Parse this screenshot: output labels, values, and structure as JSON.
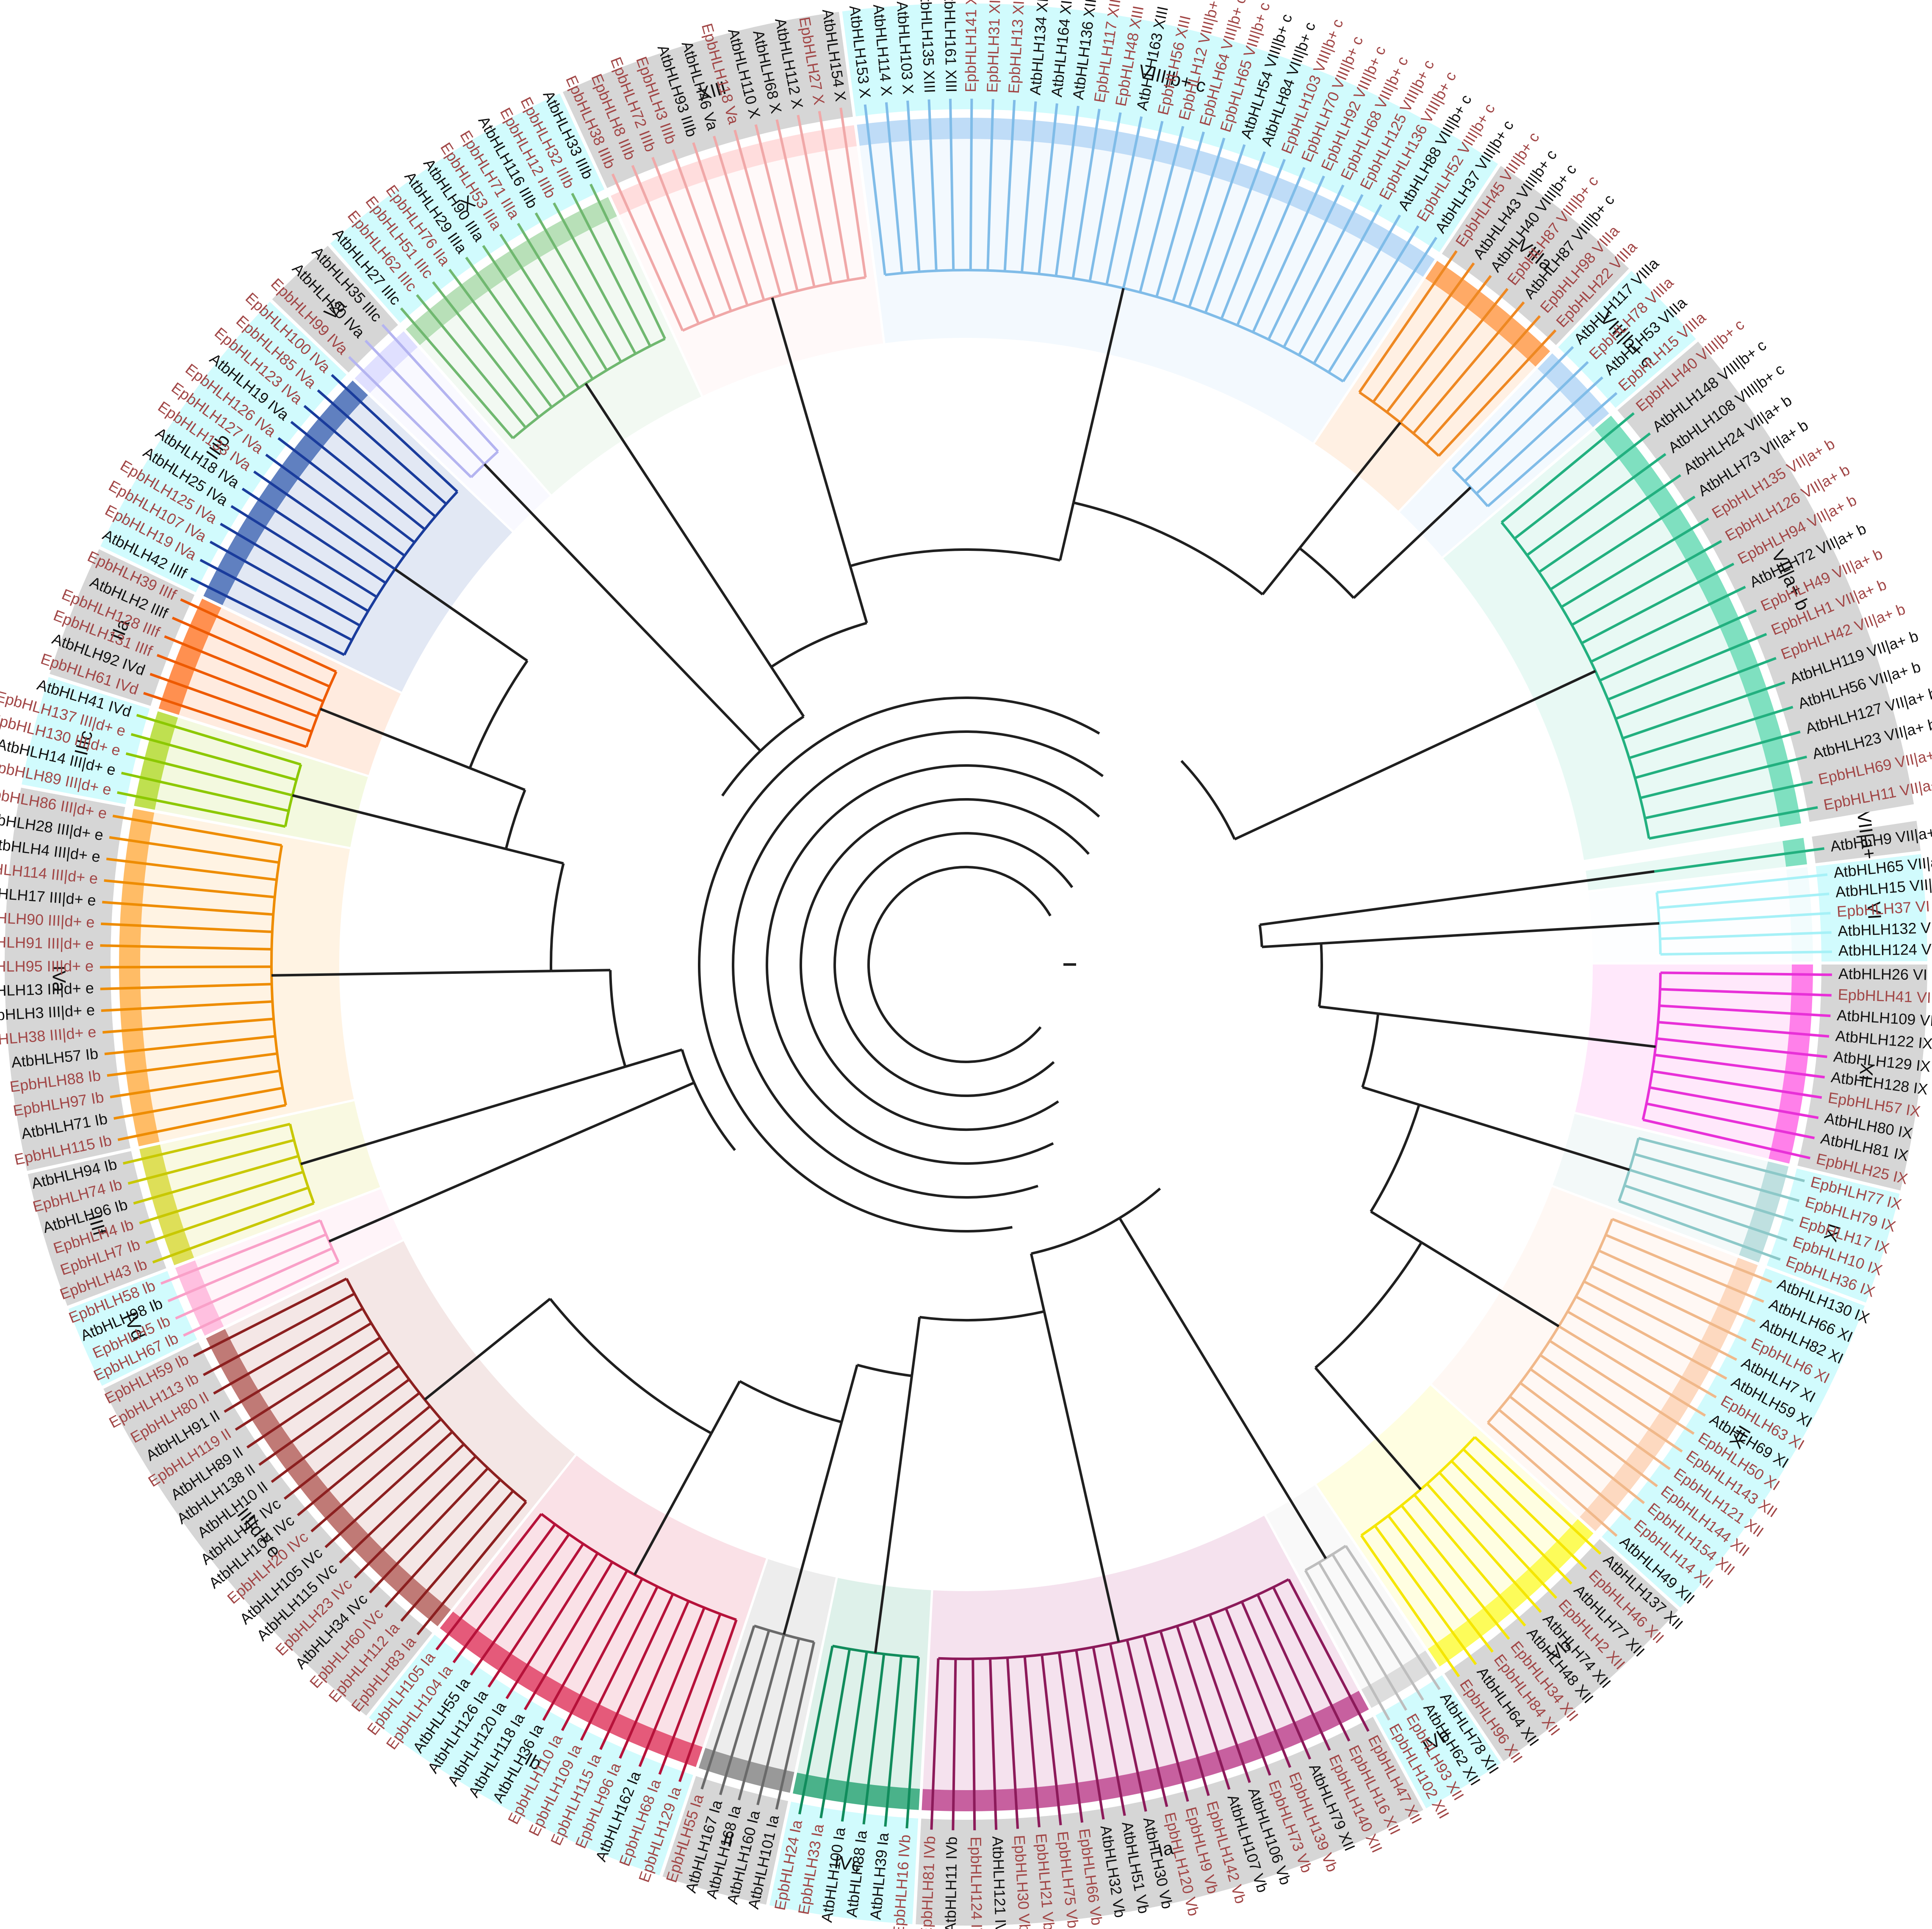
{
  "colors": {
    "at_label": "#111111",
    "ep_label": "#a14646",
    "outer_grey": "#d6d6d6",
    "outer_cyan": "#d1fbfd",
    "center_branch": "#1f1f1f"
  },
  "groups": [
    {
      "name": "VII|a+ b",
      "start": -8.6,
      "end": -6.8,
      "color": "#7fe0c0",
      "branch": "#22b07f",
      "ring": "grey"
    },
    {
      "name": "VI",
      "start": -6.6,
      "end": -0.2,
      "color": "#f2fcfd",
      "branch": "#a6f1f7",
      "ring": "cyan"
    },
    {
      "name": "IX",
      "start": 0.0,
      "end": 13.6,
      "color": "#ff80ea",
      "branch": "#e830d8",
      "ring": "grey"
    },
    {
      "name": "XI",
      "start": 13.8,
      "end": 20.6,
      "color": "#bfe0e0",
      "branch": "#8cc8c8",
      "ring": "cyan"
    },
    {
      "name": "XII",
      "start": 20.8,
      "end": 42.0,
      "color": "#fdd9c0",
      "branch": "#f0b88a",
      "ring": "cyan"
    },
    {
      "name": "Vb",
      "start": 42.2,
      "end": 56.0,
      "color": "#fdfc5a",
      "branch": "#f5e600",
      "ring": "grey"
    },
    {
      "name": "IVb",
      "start": 56.2,
      "end": 61.4,
      "color": "#dddddd",
      "branch": "#bdbdbd",
      "ring": "cyan"
    },
    {
      "name": "Ia",
      "start": 61.6,
      "end": 93.0,
      "color": "#c7609f",
      "branch": "#8c1a5a",
      "ring": "grey"
    },
    {
      "name": "IVc",
      "start": 93.2,
      "end": 101.8,
      "color": "#4ab28a",
      "branch": "#118c5c",
      "ring": "cyan"
    },
    {
      "name": "II",
      "start": 102.0,
      "end": 108.4,
      "color": "#999999",
      "branch": "#6a6a6a",
      "ring": "grey"
    },
    {
      "name": "Ib",
      "start": 108.6,
      "end": 128.4,
      "color": "#e55a7a",
      "branch": "#b6123a",
      "ring": "cyan"
    },
    {
      "name": "III|d+ e",
      "start": 128.6,
      "end": 153.8,
      "color": "#c07a76",
      "branch": "#8c2020",
      "ring": "grey"
    },
    {
      "name": "IVd",
      "start": 154.0,
      "end": 159.0,
      "color": "#ffc0e0",
      "branch": "#f9a0c8",
      "ring": "cyan"
    },
    {
      "name": "IIIf",
      "start": 159.2,
      "end": 167.4,
      "color": "#dedf58",
      "branch": "#c8c800",
      "ring": "grey"
    },
    {
      "name": "IVa",
      "start": 167.6,
      "end": 190.6,
      "color": "#ffbc66",
      "branch": "#ee8c00",
      "ring": "grey"
    },
    {
      "name": "IIIc",
      "start": 190.8,
      "end": 197.4,
      "color": "#bfe050",
      "branch": "#8cc800",
      "ring": "cyan"
    },
    {
      "name": "IIa",
      "start": 197.6,
      "end": 205.6,
      "color": "#ff9050",
      "branch": "#ee5a00",
      "ring": "grey"
    },
    {
      "name": "IIIb",
      "start": 205.8,
      "end": 223.6,
      "color": "#6080c0",
      "branch": "#1a3c9c",
      "ring": "cyan"
    },
    {
      "name": "Va",
      "start": 223.8,
      "end": 228.4,
      "color": "#e0e0ff",
      "branch": "#b4b4f0",
      "ring": "grey"
    },
    {
      "name": "X",
      "start": 228.6,
      "end": 245.0,
      "color": "#b8e0b8",
      "branch": "#70b870",
      "ring": "cyan"
    },
    {
      "name": "XIII",
      "start": 245.2,
      "end": 262.4,
      "color": "#ffdddd",
      "branch": "#f0a8a8",
      "ring": "grey"
    },
    {
      "name": "VIII|b+ c",
      "start": 262.6,
      "end": 303.6,
      "color": "#bfdcf7",
      "branch": "#80bce8",
      "ring": "cyan"
    },
    {
      "name": "VIIIa",
      "start": 303.8,
      "end": 313.6,
      "color": "#ffaa66",
      "branch": "#ee8822",
      "ring": "grey"
    },
    {
      "name": "VIII|b+ c",
      "start": 313.8,
      "end": 319.4,
      "color": "#bfdcf7",
      "branch": "#80bce8",
      "ring": "cyan"
    },
    {
      "name": "VII|a+ b",
      "start": 319.6,
      "end": 350.4,
      "color": "#7fe0c0",
      "branch": "#22b07f",
      "ring": "grey"
    }
  ],
  "leaves": [
    {
      "text": "AtbHLH9 VII|a+ b",
      "sp": "at"
    },
    {
      "text": "AtbHLH65 VII|a+ b",
      "sp": "at"
    },
    {
      "text": "AtbHLH15 VII|a+ b",
      "sp": "at"
    },
    {
      "text": "EpbHLH37 VI",
      "sp": "ep"
    },
    {
      "text": "AtbHLH132 VI",
      "sp": "at"
    },
    {
      "text": "AtbHLH124 VI",
      "sp": "at"
    },
    {
      "text": "AtbHLH26 VI",
      "sp": "at"
    },
    {
      "text": "EpbHLH41 VI",
      "sp": "ep"
    },
    {
      "text": "AtbHLH109 VI",
      "sp": "at"
    },
    {
      "text": "AtbHLH122 IX",
      "sp": "at"
    },
    {
      "text": "AtbHLH129 IX",
      "sp": "at"
    },
    {
      "text": "AtbHLH128 IX",
      "sp": "at"
    },
    {
      "text": "EpbHLH57 IX",
      "sp": "ep"
    },
    {
      "text": "AtbHLH80 IX",
      "sp": "at"
    },
    {
      "text": "AtbHLH81 IX",
      "sp": "at"
    },
    {
      "text": "EpbHLH25 IX",
      "sp": "ep"
    },
    {
      "text": "EpbHLH77 IX",
      "sp": "ep"
    },
    {
      "text": "EpbHLH79 IX",
      "sp": "ep"
    },
    {
      "text": "EpbHLH17 IX",
      "sp": "ep"
    },
    {
      "text": "EpbHLH10 IX",
      "sp": "ep"
    },
    {
      "text": "EpbHLH36 IX",
      "sp": "ep"
    },
    {
      "text": "AtbHLH130 IX",
      "sp": "at"
    },
    {
      "text": "AtbHLH66 XI",
      "sp": "at"
    },
    {
      "text": "AtbHLH82 XI",
      "sp": "at"
    },
    {
      "text": "EpbHLH6 XI",
      "sp": "ep"
    },
    {
      "text": "AtbHLH7 XI",
      "sp": "at"
    },
    {
      "text": "AtbHLH59 XI",
      "sp": "at"
    },
    {
      "text": "EpbHLH63 XI",
      "sp": "ep"
    },
    {
      "text": "AtbHLH69 XI",
      "sp": "at"
    },
    {
      "text": "EpbHLH50 XI",
      "sp": "ep"
    },
    {
      "text": "EpbHLH143 XII",
      "sp": "ep"
    },
    {
      "text": "EpbHLH121 XII",
      "sp": "ep"
    },
    {
      "text": "EpbHLH144 XII",
      "sp": "ep"
    },
    {
      "text": "EpbHLH154 XII",
      "sp": "ep"
    },
    {
      "text": "EpbHLH14 XII",
      "sp": "ep"
    },
    {
      "text": "AtbHLH49 XII",
      "sp": "at"
    },
    {
      "text": "AtbHLH137 XII",
      "sp": "at"
    },
    {
      "text": "EpbHLH46 XII",
      "sp": "ep"
    },
    {
      "text": "AtbHLH77 XII",
      "sp": "at"
    },
    {
      "text": "EpbHLH2 XII",
      "sp": "ep"
    },
    {
      "text": "AtbHLH74 XII",
      "sp": "at"
    },
    {
      "text": "AtbHLH48 XII",
      "sp": "at"
    },
    {
      "text": "EpbHLH34 XII",
      "sp": "ep"
    },
    {
      "text": "EpbHLH84 XII",
      "sp": "ep"
    },
    {
      "text": "AtbHLH64 XII",
      "sp": "at"
    },
    {
      "text": "EpbHLH96 XII",
      "sp": "ep"
    },
    {
      "text": "AtbHLH78 XII",
      "sp": "at"
    },
    {
      "text": "AtbHLH62 XII",
      "sp": "at"
    },
    {
      "text": "EpbHLH93 XII",
      "sp": "ep"
    },
    {
      "text": "EpbHLH102 XII",
      "sp": "ep"
    },
    {
      "text": "EpbHLH47 XII",
      "sp": "ep"
    },
    {
      "text": "EpbHLH16 XII",
      "sp": "ep"
    },
    {
      "text": "EpbHLH140 XII",
      "sp": "ep"
    },
    {
      "text": "AtbHLH79 XII",
      "sp": "at"
    },
    {
      "text": "EpbHLH139 Vb",
      "sp": "ep"
    },
    {
      "text": "EpbHLH73 Vb",
      "sp": "ep"
    },
    {
      "text": "AtbHLH106 Vb",
      "sp": "at"
    },
    {
      "text": "AtbHLH107 Vb",
      "sp": "at"
    },
    {
      "text": "EpbHLH142 Vb",
      "sp": "ep"
    },
    {
      "text": "EpbHLH9 Vb",
      "sp": "ep"
    },
    {
      "text": "EpbHLH120 Vb",
      "sp": "ep"
    },
    {
      "text": "AtbHLH30 Vb",
      "sp": "at"
    },
    {
      "text": "AtbHLH51 Vb",
      "sp": "at"
    },
    {
      "text": "AtbHLH32 Vb",
      "sp": "at"
    },
    {
      "text": "EpbHLH66 Vb",
      "sp": "ep"
    },
    {
      "text": "EpbHLH75 Vb",
      "sp": "ep"
    },
    {
      "text": "EpbHLH21 Vb",
      "sp": "ep"
    },
    {
      "text": "EpbHLH30 Vb",
      "sp": "ep"
    },
    {
      "text": "AtbHLH121 IVb",
      "sp": "at"
    },
    {
      "text": "EpbHLH124 IVb",
      "sp": "ep"
    },
    {
      "text": "AtbHLH11 IVb",
      "sp": "at"
    },
    {
      "text": "EpbHLH81 IVb",
      "sp": "ep"
    },
    {
      "text": "EpbHLH16 IVb",
      "sp": "ep"
    },
    {
      "text": "AtbHLH39 Ia",
      "sp": "at"
    },
    {
      "text": "AtbHLH38 Ia",
      "sp": "at"
    },
    {
      "text": "AtbHLH100 Ia",
      "sp": "at"
    },
    {
      "text": "EpbHLH33 Ia",
      "sp": "ep"
    },
    {
      "text": "EpbHLH24 Ia",
      "sp": "ep"
    },
    {
      "text": "AtbHLH101 Ia",
      "sp": "at"
    },
    {
      "text": "AtbHLH160 Ia",
      "sp": "at"
    },
    {
      "text": "AtbHLH168 Ia",
      "sp": "at"
    },
    {
      "text": "AtbHLH167 Ia",
      "sp": "at"
    },
    {
      "text": "EpbHLH55 Ia",
      "sp": "ep"
    },
    {
      "text": "EpbHLH129 Ia",
      "sp": "ep"
    },
    {
      "text": "EpbHLH68 Ia",
      "sp": "ep"
    },
    {
      "text": "AtbHLH162 Ia",
      "sp": "at"
    },
    {
      "text": "EpbHLH96 Ia",
      "sp": "ep"
    },
    {
      "text": "EpbHLH115 Ia",
      "sp": "ep"
    },
    {
      "text": "EpbHLH109 Ia",
      "sp": "ep"
    },
    {
      "text": "EpbHLH110 Ia",
      "sp": "ep"
    },
    {
      "text": "AtbHLH36 Ia",
      "sp": "at"
    },
    {
      "text": "AtbHLH118 Ia",
      "sp": "at"
    },
    {
      "text": "AtbHLH120 Ia",
      "sp": "at"
    },
    {
      "text": "AtbHLH126 Ia",
      "sp": "at"
    },
    {
      "text": "AtbHLH55 Ia",
      "sp": "at"
    },
    {
      "text": "EpbHLH104 Ia",
      "sp": "ep"
    },
    {
      "text": "EpbHLH105 Ia",
      "sp": "ep"
    },
    {
      "text": "EpbHLH83 Ia",
      "sp": "ep"
    },
    {
      "text": "EpbHLH112 Ia",
      "sp": "ep"
    },
    {
      "text": "EpbHLH60 IVc",
      "sp": "ep"
    },
    {
      "text": "AtbHLH34 IVc",
      "sp": "at"
    },
    {
      "text": "EpbHLH23 IVc",
      "sp": "ep"
    },
    {
      "text": "AtbHLH115 IVc",
      "sp": "at"
    },
    {
      "text": "AtbHLH105 IVc",
      "sp": "at"
    },
    {
      "text": "EpbHLH20 IVc",
      "sp": "ep"
    },
    {
      "text": "AtbHLH104 IVc",
      "sp": "at"
    },
    {
      "text": "AtbHLH47 IVc",
      "sp": "at"
    },
    {
      "text": "AtbHLH10 II",
      "sp": "at"
    },
    {
      "text": "AtbHLH138 II",
      "sp": "at"
    },
    {
      "text": "AtbHLH89 II",
      "sp": "at"
    },
    {
      "text": "EpbHLH119 II",
      "sp": "ep"
    },
    {
      "text": "AtbHLH91 II",
      "sp": "at"
    },
    {
      "text": "EpbHLH80 II",
      "sp": "ep"
    },
    {
      "text": "EpbHLH113 Ib",
      "sp": "ep"
    },
    {
      "text": "EpbHLH59 Ib",
      "sp": "ep"
    },
    {
      "text": "EpbHLH67 Ib",
      "sp": "ep"
    },
    {
      "text": "EpbHLH5 Ib",
      "sp": "ep"
    },
    {
      "text": "AtbHLH98 Ib",
      "sp": "at"
    },
    {
      "text": "EpbHLH58 Ib",
      "sp": "ep"
    },
    {
      "text": "EpbHLH43 Ib",
      "sp": "ep"
    },
    {
      "text": "EpbHLH7 Ib",
      "sp": "ep"
    },
    {
      "text": "EpbHLH4 Ib",
      "sp": "ep"
    },
    {
      "text": "AtbHLH96 Ib",
      "sp": "at"
    },
    {
      "text": "EpbHLH74 Ib",
      "sp": "ep"
    },
    {
      "text": "AtbHLH94 Ib",
      "sp": "at"
    },
    {
      "text": "EpbHLH115 Ib",
      "sp": "ep"
    },
    {
      "text": "AtbHLH71 Ib",
      "sp": "at"
    },
    {
      "text": "EpbHLH97 Ib",
      "sp": "ep"
    },
    {
      "text": "EpbHLH88 Ib",
      "sp": "ep"
    },
    {
      "text": "AtbHLH57 Ib",
      "sp": "at"
    },
    {
      "text": "EpbHLH38 III|d+ e",
      "sp": "ep"
    },
    {
      "text": "AtbHLH3 III|d+ e",
      "sp": "at"
    },
    {
      "text": "AtbHLH13 III|d+ e",
      "sp": "at"
    },
    {
      "text": "EpbHLH95 III|d+ e",
      "sp": "ep"
    },
    {
      "text": "EpbHLH91 III|d+ e",
      "sp": "ep"
    },
    {
      "text": "EpbHLH90 III|d+ e",
      "sp": "ep"
    },
    {
      "text": "AtbHLH17 III|d+ e",
      "sp": "at"
    },
    {
      "text": "EpbHLH114 III|d+ e",
      "sp": "ep"
    },
    {
      "text": "AtbHLH4 III|d+ e",
      "sp": "at"
    },
    {
      "text": "AtbHLH28 III|d+ e",
      "sp": "at"
    },
    {
      "text": "EpbHLH86 III|d+ e",
      "sp": "ep"
    },
    {
      "text": "EpbHLH89 III|d+ e",
      "sp": "ep"
    },
    {
      "text": "AtbHLH14 III|d+ e",
      "sp": "at"
    },
    {
      "text": "EpbHLH130 III|d+ e",
      "sp": "ep"
    },
    {
      "text": "EpbHLH137 III|d+ e",
      "sp": "ep"
    },
    {
      "text": "AtbHLH41 IVd",
      "sp": "at"
    },
    {
      "text": "EpbHLH61 IVd",
      "sp": "ep"
    },
    {
      "text": "AtbHLH92 IVd",
      "sp": "at"
    },
    {
      "text": "EpbHLH131 IIIf",
      "sp": "ep"
    },
    {
      "text": "EpbHLH128 IIIf",
      "sp": "ep"
    },
    {
      "text": "AtbHLH2 IIIf",
      "sp": "at"
    },
    {
      "text": "EpbHLH39 IIIf",
      "sp": "ep"
    },
    {
      "text": "AtbHLH42 IIIf",
      "sp": "at"
    },
    {
      "text": "EpbHLH19 IVa",
      "sp": "ep"
    },
    {
      "text": "EpbHLH107 IVa",
      "sp": "ep"
    },
    {
      "text": "EpbHLH125 IVa",
      "sp": "ep"
    },
    {
      "text": "AtbHLH25 IVa",
      "sp": "at"
    },
    {
      "text": "AtbHLH18 IVa",
      "sp": "at"
    },
    {
      "text": "EpbHLH133 IVa",
      "sp": "ep"
    },
    {
      "text": "EpbHLH127 IVa",
      "sp": "ep"
    },
    {
      "text": "EpbHLH126 IVa",
      "sp": "ep"
    },
    {
      "text": "AtbHLH19 IVa",
      "sp": "at"
    },
    {
      "text": "EpbHLH123 IVa",
      "sp": "ep"
    },
    {
      "text": "EpbHLH85 IVa",
      "sp": "ep"
    },
    {
      "text": "EpbHLH100 IVa",
      "sp": "ep"
    },
    {
      "text": "EpbHLH99 IVa",
      "sp": "ep"
    },
    {
      "text": "AtbHLH20 IVa",
      "sp": "at"
    },
    {
      "text": "AtbHLH35 IIIc",
      "sp": "at"
    },
    {
      "text": "AtbHLH27 IIIc",
      "sp": "at"
    },
    {
      "text": "EpbHLH62 IIIc",
      "sp": "ep"
    },
    {
      "text": "EpbHLH51 IIIc",
      "sp": "ep"
    },
    {
      "text": "EpbHLH76 IIa",
      "sp": "ep"
    },
    {
      "text": "AtbHLH29 IIIa",
      "sp": "at"
    },
    {
      "text": "AtbHLH90 IIIa",
      "sp": "at"
    },
    {
      "text": "EpbHLH53 IIIa",
      "sp": "ep"
    },
    {
      "text": "EpbHLH71 IIIa",
      "sp": "ep"
    },
    {
      "text": "AtbHLH116 IIIb",
      "sp": "at"
    },
    {
      "text": "EpbHLH12 IIIb",
      "sp": "ep"
    },
    {
      "text": "EpbHLH32 IIIb",
      "sp": "ep"
    },
    {
      "text": "AtbHLH33 IIIb",
      "sp": "at"
    },
    {
      "text": "EpbHLH38 IIIb",
      "sp": "ep"
    },
    {
      "text": "EpbHLH8 IIIb",
      "sp": "ep"
    },
    {
      "text": "EpbHLH72 IIIb",
      "sp": "ep"
    },
    {
      "text": "EpbHLH3 IIIb",
      "sp": "ep"
    },
    {
      "text": "AtbHLH93 IIIb",
      "sp": "at"
    },
    {
      "text": "AtbHLH46 Va",
      "sp": "at"
    },
    {
      "text": "EpbHLH118 Va",
      "sp": "ep"
    },
    {
      "text": "AtbHLH110 X",
      "sp": "at"
    },
    {
      "text": "AtbHLH68 X",
      "sp": "at"
    },
    {
      "text": "AtbHLH112 X",
      "sp": "at"
    },
    {
      "text": "EpbHLH27 X",
      "sp": "ep"
    },
    {
      "text": "AtbHLH154 X",
      "sp": "at"
    },
    {
      "text": "AtbHLH153 X",
      "sp": "at"
    },
    {
      "text": "AtbHLH114 X",
      "sp": "at"
    },
    {
      "text": "AtbHLH103 X",
      "sp": "at"
    },
    {
      "text": "AtbHLH135 XIII",
      "sp": "at"
    },
    {
      "text": "AtbHLH161 XIII",
      "sp": "at"
    },
    {
      "text": "EpbHLH141 XIII",
      "sp": "ep"
    },
    {
      "text": "EpbHLH31 XIII",
      "sp": "ep"
    },
    {
      "text": "EpbHLH13 XIII",
      "sp": "ep"
    },
    {
      "text": "AtbHLH134 XIII",
      "sp": "at"
    },
    {
      "text": "AtbHLH164 XIII",
      "sp": "at"
    },
    {
      "text": "AtbHLH136 XIII",
      "sp": "at"
    },
    {
      "text": "EpbHLH117 XIII",
      "sp": "ep"
    },
    {
      "text": "EpbHLH48 XIII",
      "sp": "ep"
    },
    {
      "text": "AtbHLH163 XIII",
      "sp": "at"
    },
    {
      "text": "EpbHLH56 XIII",
      "sp": "ep"
    },
    {
      "text": "EpbHLH12 VIII|b+ c",
      "sp": "ep"
    },
    {
      "text": "EpbHLH64 VIII|b+ c",
      "sp": "ep"
    },
    {
      "text": "EpbHLH65 VIII|b+ c",
      "sp": "ep"
    },
    {
      "text": "AtbHLH54 VIII|b+ c",
      "sp": "at"
    },
    {
      "text": "AtbHLH84 VIII|b+ c",
      "sp": "at"
    },
    {
      "text": "EpbHLH103 VIII|b+ c",
      "sp": "ep"
    },
    {
      "text": "EpbHLH70 VIII|b+ c",
      "sp": "ep"
    },
    {
      "text": "EpbHLH92 VIII|b+ c",
      "sp": "ep"
    },
    {
      "text": "EpbHLH68 VIII|b+ c",
      "sp": "ep"
    },
    {
      "text": "EpbHLH125 VIII|b+ c",
      "sp": "ep"
    },
    {
      "text": "EpbHLH136 VIII|b+ c",
      "sp": "ep"
    },
    {
      "text": "AtbHLH88 VIII|b+ c",
      "sp": "at"
    },
    {
      "text": "EpbHLH52 VIII|b+ c",
      "sp": "ep"
    },
    {
      "text": "AtbHLH37 VIII|b+ c",
      "sp": "at"
    },
    {
      "text": "EpbHLH45 VIII|b+ c",
      "sp": "ep"
    },
    {
      "text": "AtbHLH43 VIII|b+ c",
      "sp": "at"
    },
    {
      "text": "AtbHLH40 VIII|b+ c",
      "sp": "at"
    },
    {
      "text": "EpbHLH87 VIII|b+ c",
      "sp": "ep"
    },
    {
      "text": "AtbHLH87 VIII|b+ c",
      "sp": "at"
    },
    {
      "text": "EpbHLH98 VIIIa",
      "sp": "ep"
    },
    {
      "text": "EpbHLH22 VIIIa",
      "sp": "ep"
    },
    {
      "text": "AtbHLH117 VIIIa",
      "sp": "at"
    },
    {
      "text": "EpbHLH78 VIIIa",
      "sp": "ep"
    },
    {
      "text": "AtbHLH53 VIIIa",
      "sp": "at"
    },
    {
      "text": "EpbHLH15 VIIIa",
      "sp": "ep"
    },
    {
      "text": "EpbHLH40 VIII|b+ c",
      "sp": "ep"
    },
    {
      "text": "AtbHLH148 VIII|b+ c",
      "sp": "at"
    },
    {
      "text": "AtbHLH108 VIII|b+ c",
      "sp": "at"
    },
    {
      "text": "AtbHLH24 VII|a+ b",
      "sp": "at"
    },
    {
      "text": "AtbHLH73 VII|a+ b",
      "sp": "at"
    },
    {
      "text": "EpbHLH135 VII|a+ b",
      "sp": "ep"
    },
    {
      "text": "EpbHLH126 VII|a+ b",
      "sp": "ep"
    },
    {
      "text": "EpbHLH94 VII|a+ b",
      "sp": "ep"
    },
    {
      "text": "AtbHLH72 VII|a+ b",
      "sp": "at"
    },
    {
      "text": "EpbHLH49 VII|a+ b",
      "sp": "ep"
    },
    {
      "text": "EpbHLH1 VII|a+ b",
      "sp": "ep"
    },
    {
      "text": "EpbHLH42 VII|a+ b",
      "sp": "ep"
    },
    {
      "text": "AtbHLH119 VII|a+ b",
      "sp": "at"
    },
    {
      "text": "AtbHLH56 VII|a+ b",
      "sp": "at"
    },
    {
      "text": "AtbHLH127 VII|a+ b",
      "sp": "at"
    },
    {
      "text": "AtbHLH23 VII|a+ b",
      "sp": "at"
    },
    {
      "text": "EpbHLH69 VII|a+ b",
      "sp": "ep"
    },
    {
      "text": "EpbHLH11 VII|a+ b",
      "sp": "ep"
    }
  ]
}
